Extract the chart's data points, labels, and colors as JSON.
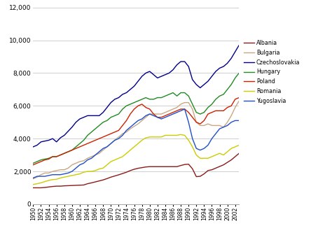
{
  "years": [
    1950,
    1951,
    1952,
    1953,
    1954,
    1955,
    1956,
    1957,
    1958,
    1959,
    1960,
    1961,
    1962,
    1963,
    1964,
    1965,
    1966,
    1967,
    1968,
    1969,
    1970,
    1971,
    1972,
    1973,
    1974,
    1975,
    1976,
    1977,
    1978,
    1979,
    1980,
    1981,
    1982,
    1983,
    1984,
    1985,
    1986,
    1987,
    1988,
    1989,
    1990,
    1991,
    1992,
    1993,
    1994,
    1995,
    1996,
    1997,
    1998,
    1999,
    2000,
    2001,
    2002,
    2003
  ],
  "Albania": [
    1000,
    1000,
    1000,
    1020,
    1050,
    1080,
    1100,
    1100,
    1120,
    1130,
    1140,
    1150,
    1160,
    1170,
    1250,
    1300,
    1360,
    1420,
    1480,
    1560,
    1650,
    1720,
    1790,
    1870,
    1950,
    2050,
    2130,
    2190,
    2230,
    2270,
    2290,
    2290,
    2290,
    2290,
    2290,
    2290,
    2290,
    2290,
    2360,
    2420,
    2440,
    2160,
    1680,
    1700,
    1850,
    2050,
    2100,
    2200,
    2300,
    2400,
    2550,
    2700,
    2900,
    3100
  ],
  "Bulgaria": [
    1550,
    1650,
    1800,
    1900,
    1900,
    2000,
    2050,
    2100,
    2100,
    2200,
    2400,
    2500,
    2600,
    2650,
    2800,
    2900,
    3000,
    3100,
    3300,
    3500,
    3700,
    3900,
    4100,
    4300,
    4400,
    4600,
    4750,
    4900,
    5100,
    5300,
    5500,
    5500,
    5500,
    5500,
    5600,
    5700,
    5800,
    5900,
    6100,
    6200,
    6200,
    5800,
    5000,
    4800,
    4800,
    4900,
    4800,
    4800,
    4800,
    4700,
    5000,
    5400,
    5900,
    6300
  ],
  "Czechoslovakia": [
    3500,
    3600,
    3800,
    3850,
    3900,
    4000,
    3800,
    4050,
    4200,
    4450,
    4700,
    5000,
    5200,
    5300,
    5400,
    5400,
    5400,
    5400,
    5600,
    5900,
    6200,
    6400,
    6500,
    6700,
    6800,
    7000,
    7200,
    7500,
    7800,
    8000,
    8100,
    7900,
    7700,
    7800,
    7900,
    8000,
    8200,
    8500,
    8700,
    8700,
    8400,
    7600,
    7300,
    7100,
    7300,
    7500,
    7800,
    8100,
    8300,
    8400,
    8600,
    8900,
    9300,
    9700
  ],
  "Hungary": [
    2500,
    2600,
    2700,
    2750,
    2800,
    2900,
    2900,
    3000,
    3100,
    3200,
    3300,
    3500,
    3700,
    3900,
    4200,
    4400,
    4600,
    4800,
    5000,
    5100,
    5300,
    5400,
    5500,
    5800,
    6000,
    6100,
    6200,
    6300,
    6400,
    6500,
    6400,
    6400,
    6500,
    6500,
    6600,
    6700,
    6800,
    6600,
    6800,
    6800,
    6600,
    6100,
    5600,
    5500,
    5600,
    5900,
    6100,
    6400,
    6600,
    6700,
    7000,
    7300,
    7700,
    8000
  ],
  "Poland": [
    2400,
    2500,
    2600,
    2700,
    2750,
    2900,
    2900,
    3000,
    3100,
    3200,
    3300,
    3400,
    3500,
    3600,
    3700,
    3800,
    3900,
    4000,
    4100,
    4200,
    4300,
    4400,
    4500,
    4800,
    5100,
    5500,
    5800,
    6000,
    6100,
    5900,
    5800,
    5500,
    5300,
    5300,
    5400,
    5500,
    5600,
    5700,
    5800,
    5800,
    5600,
    5300,
    5000,
    4900,
    5100,
    5500,
    5600,
    5700,
    5700,
    5700,
    5900,
    6000,
    6400,
    6500
  ],
  "Romania": [
    1200,
    1250,
    1300,
    1380,
    1450,
    1500,
    1520,
    1600,
    1650,
    1700,
    1750,
    1800,
    1850,
    1950,
    2000,
    2000,
    2050,
    2150,
    2200,
    2400,
    2600,
    2700,
    2800,
    2900,
    3100,
    3300,
    3500,
    3700,
    3900,
    4050,
    4100,
    4100,
    4100,
    4100,
    4200,
    4200,
    4200,
    4200,
    4250,
    4200,
    3900,
    3500,
    3000,
    2800,
    2800,
    2800,
    2900,
    3000,
    3100,
    3000,
    3200,
    3400,
    3500,
    3600
  ],
  "Yugoslavia": [
    1600,
    1700,
    1700,
    1700,
    1750,
    1800,
    1800,
    1800,
    1850,
    1900,
    2000,
    2200,
    2400,
    2500,
    2700,
    2800,
    3000,
    3200,
    3400,
    3500,
    3700,
    3900,
    4000,
    4200,
    4500,
    4700,
    4900,
    5100,
    5200,
    5400,
    5500,
    5400,
    5300,
    5200,
    5300,
    5400,
    5500,
    5600,
    5700,
    5800,
    5000,
    4000,
    3400,
    3300,
    3400,
    3600,
    4000,
    4300,
    4600,
    4700,
    4800,
    5000,
    5100,
    5100
  ],
  "colors": {
    "Albania": "#8B1A1A",
    "Bulgaria": "#C8A882",
    "Czechoslovakia": "#00008B",
    "Hungary": "#228B22",
    "Poland": "#CC2200",
    "Romania": "#CCCC00",
    "Yugoslavia": "#1E4FCC"
  },
  "ylim": [
    0,
    12000
  ],
  "yticks": [
    0,
    2000,
    4000,
    6000,
    8000,
    10000,
    12000
  ],
  "xlim": [
    1950,
    2003
  ],
  "bg_color": "#FFFFFF",
  "grid_color": "#C8C8C8"
}
